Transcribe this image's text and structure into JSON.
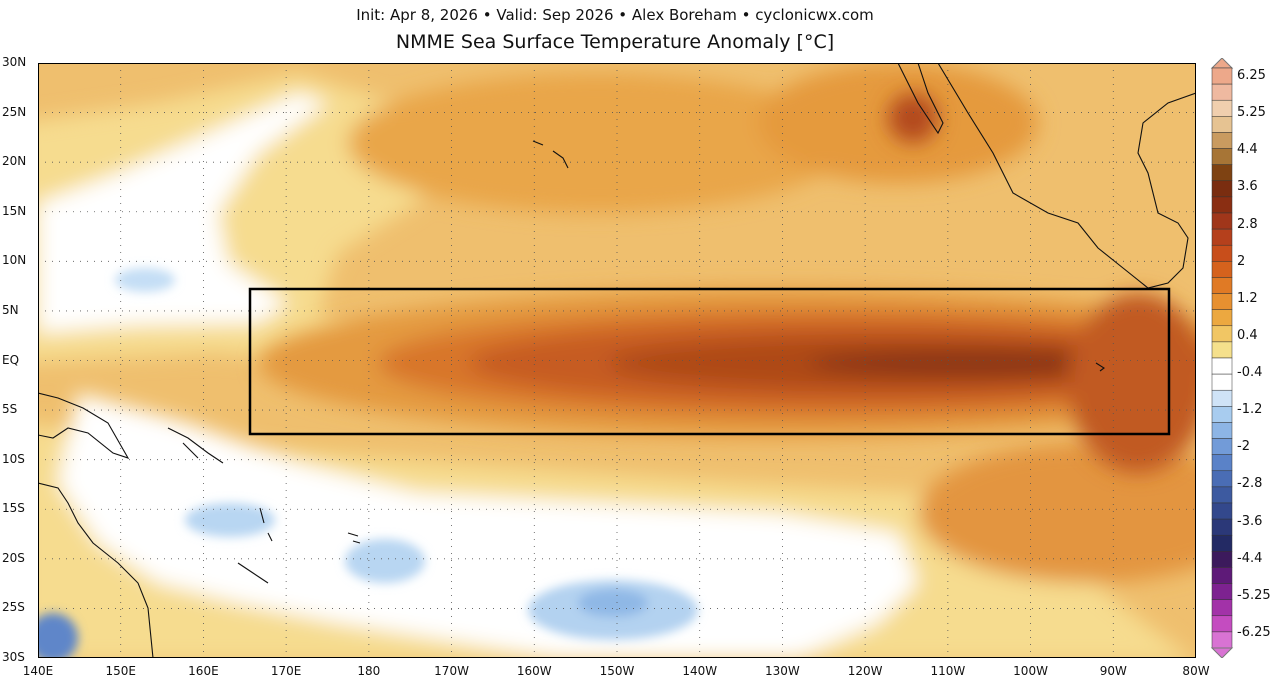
{
  "header": {
    "subtitle": "Init: Apr 8, 2026 • Valid: Sep 2026 • Alex Boreham • cyclonicwx.com",
    "title": "NMME Sea Surface Temperature Anomaly [°C]"
  },
  "map": {
    "extent": {
      "lon_min": "140E",
      "lon_max": "80W",
      "lat_min": "30S",
      "lat_max": "30N"
    },
    "lat_labels": [
      "30N",
      "25N",
      "20N",
      "15N",
      "10N",
      "5N",
      "EQ",
      "5S",
      "10S",
      "15S",
      "20S",
      "25S",
      "30S"
    ],
    "lon_labels": [
      "140E",
      "150E",
      "160E",
      "170E",
      "180",
      "170W",
      "160W",
      "150W",
      "140W",
      "130W",
      "120W",
      "110W",
      "100W",
      "90W",
      "80W"
    ],
    "highlight_box": {
      "lon_west": "165E",
      "lon_east": "83W",
      "lat_north": "7.5N",
      "lat_south": "7.5S",
      "color": "#000000"
    },
    "gridlines": "dotted"
  },
  "colorbar": {
    "unit": "°C",
    "ticks": [
      "6.25",
      "5.25",
      "4.4",
      "3.6",
      "2.8",
      "2",
      "1.2",
      "0.4",
      "-0.4",
      "-1.2",
      "-2",
      "-2.8",
      "-3.6",
      "-4.4",
      "-5.25",
      "-6.25"
    ],
    "colors_top_to_bottom": [
      "#eda88a",
      "#efb9a0",
      "#f0cfae",
      "#e6c392",
      "#c99b60",
      "#a77536",
      "#7e4212",
      "#7a2d10",
      "#8a2e12",
      "#a0361a",
      "#b5401c",
      "#c84e1b",
      "#d5621d",
      "#e07a25",
      "#e79030",
      "#eca840",
      "#f1c664",
      "#f5e08c",
      "#ffffff",
      "#ffffff",
      "#cfe3f7",
      "#a8ccef",
      "#8db5e5",
      "#729bd8",
      "#5a82c8",
      "#4a6db5",
      "#3d5aa0",
      "#33488c",
      "#2b3878",
      "#232a64",
      "#3c1a5c",
      "#5e1a78",
      "#7d2290",
      "#a232a8",
      "#c44cc0",
      "#d873d3"
    ]
  }
}
